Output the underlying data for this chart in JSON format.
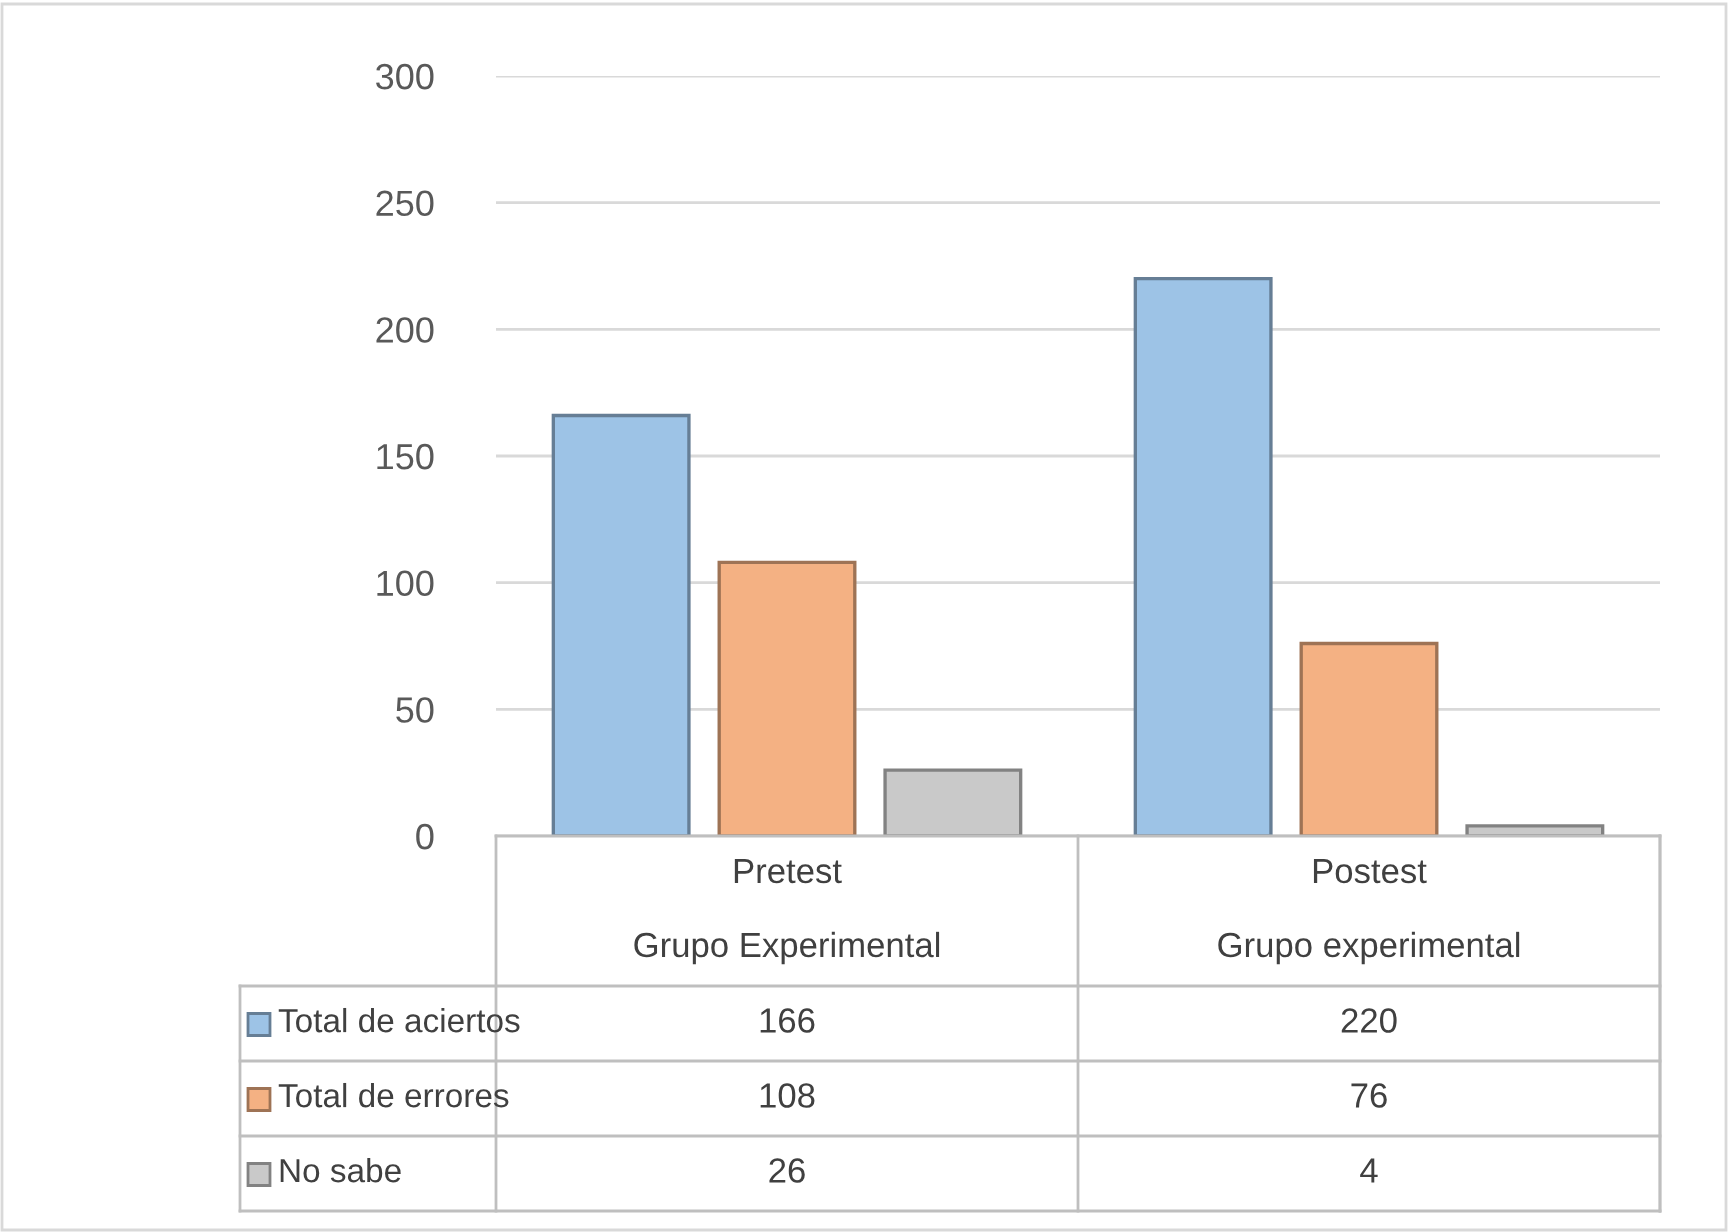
{
  "chart_data": {
    "type": "bar",
    "categories": [
      "Pretest\nGrupo Experimental",
      "Postest\nGrupo experimental"
    ],
    "series": [
      {
        "name": "Total de aciertos",
        "color": "#9dc3e6",
        "values": [
          166,
          220
        ]
      },
      {
        "name": "Total de errores",
        "color": "#f4b183",
        "values": [
          108,
          76
        ]
      },
      {
        "name": "No sabe",
        "color": "#c9c9c9",
        "values": [
          26,
          4
        ]
      }
    ],
    "ylim": [
      0,
      300
    ],
    "yticks": [
      0,
      50,
      100,
      150,
      200,
      250,
      300
    ],
    "grid": "y",
    "data_labels": true,
    "legend": "bottom left"
  }
}
